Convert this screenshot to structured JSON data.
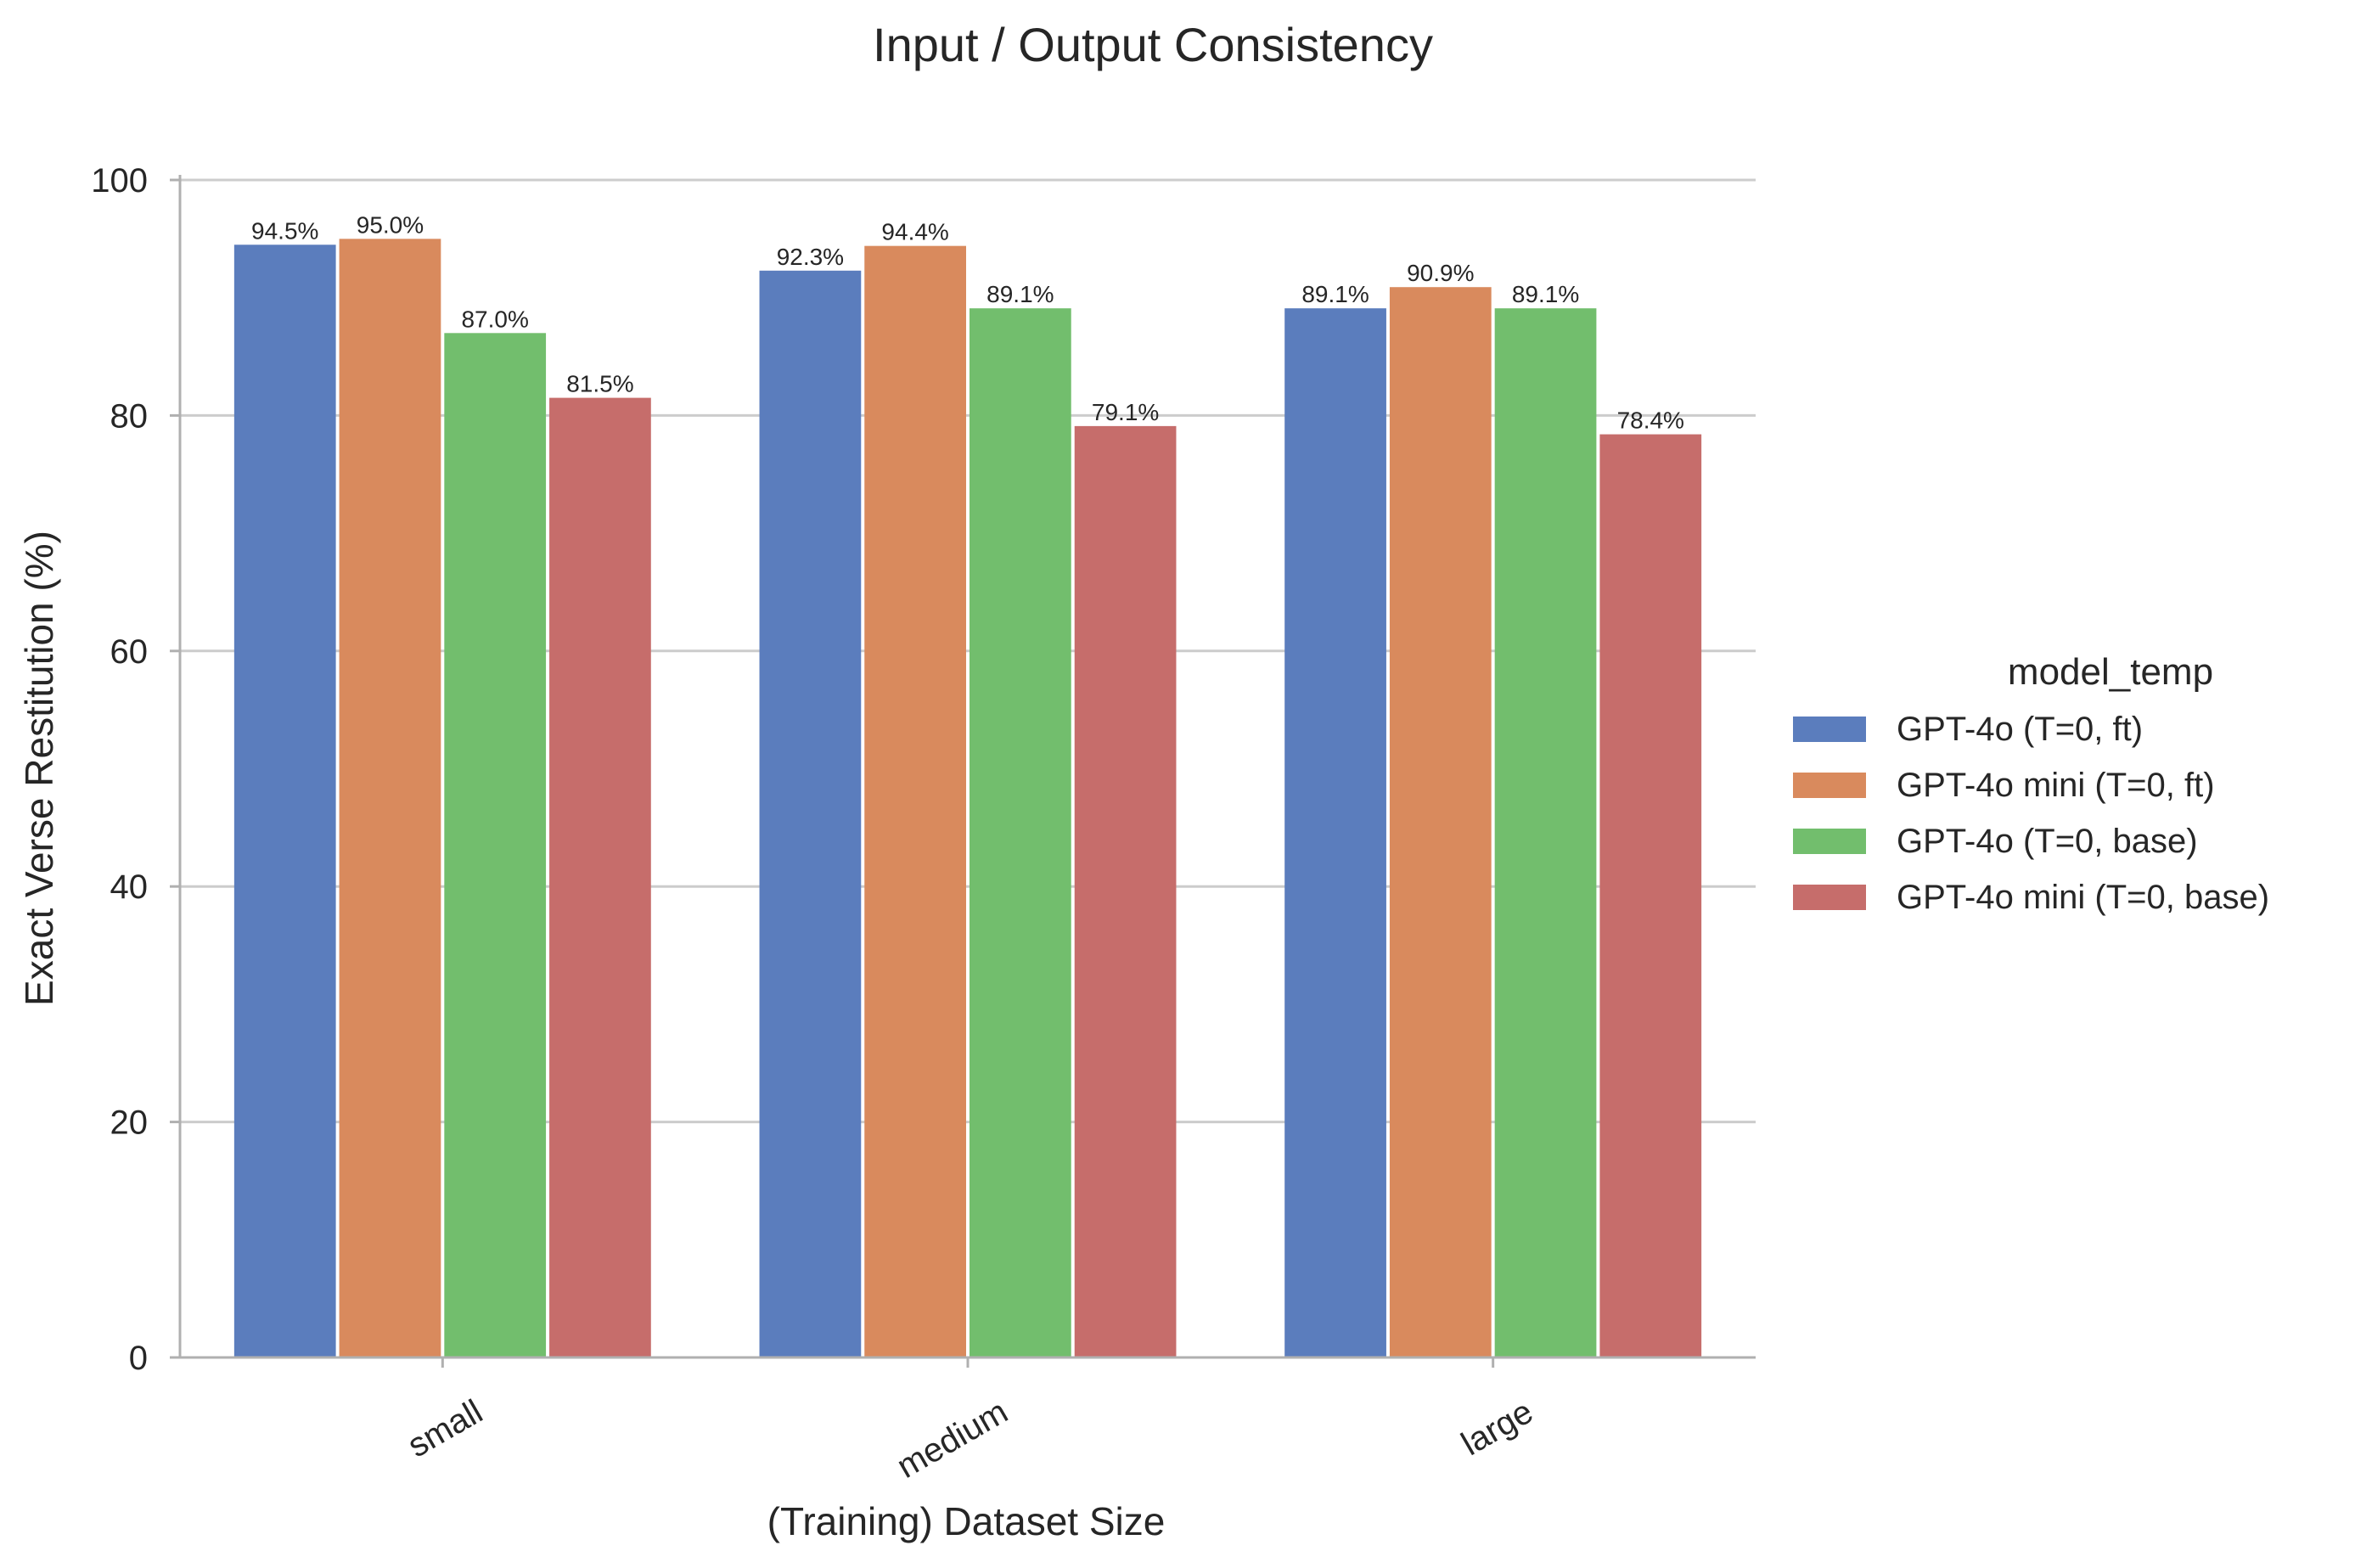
{
  "chart_data": {
    "type": "bar",
    "title": "Input / Output Consistency",
    "xlabel": "(Training) Dataset Size",
    "ylabel": "Exact Verse Restitution (%)",
    "categories": [
      "small",
      "medium",
      "large"
    ],
    "ylim": [
      0,
      100
    ],
    "yticks": [
      0,
      20,
      40,
      60,
      80,
      100
    ],
    "grid": "horizontal",
    "legend": {
      "title": "model_temp",
      "placement": "right"
    },
    "series": [
      {
        "name": "GPT-4o (T=0, ft)",
        "color": "#5b7dbd",
        "values": [
          94.5,
          92.3,
          89.1
        ],
        "labels": [
          "94.5%",
          "92.3%",
          "89.1%"
        ]
      },
      {
        "name": "GPT-4o mini (T=0, ft)",
        "color": "#d98a5d",
        "values": [
          95.0,
          94.4,
          90.9
        ],
        "labels": [
          "95.0%",
          "94.4%",
          "90.9%"
        ]
      },
      {
        "name": "GPT-4o (T=0, base)",
        "color": "#72be6d",
        "values": [
          87.0,
          89.1,
          89.1
        ],
        "labels": [
          "87.0%",
          "89.1%",
          "89.1%"
        ]
      },
      {
        "name": "GPT-4o mini (T=0, base)",
        "color": "#c66d6b",
        "values": [
          81.5,
          79.1,
          78.4
        ],
        "labels": [
          "81.5%",
          "79.1%",
          "78.4%"
        ]
      }
    ]
  }
}
